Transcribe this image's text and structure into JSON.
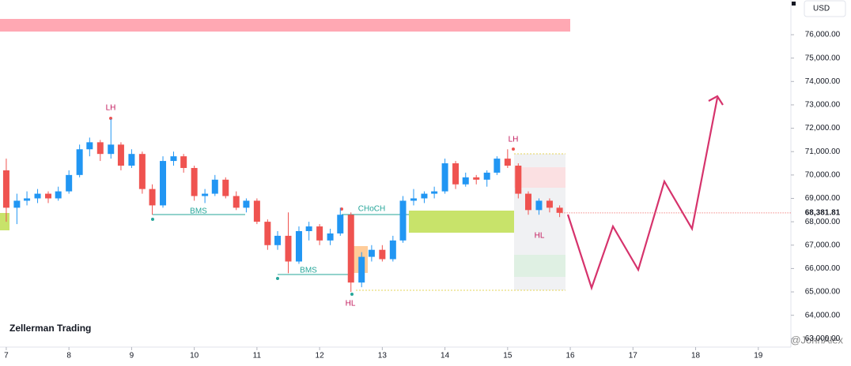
{
  "chart_data": {
    "type": "candlestick",
    "currency": "USD",
    "x": [
      7.0,
      7.17,
      7.33,
      7.5,
      7.67,
      7.83,
      8.0,
      8.17,
      8.33,
      8.5,
      8.67,
      8.83,
      9.0,
      9.17,
      9.33,
      9.5,
      9.67,
      9.83,
      10.0,
      10.17,
      10.33,
      10.5,
      10.67,
      10.83,
      11.0,
      11.17,
      11.33,
      11.5,
      11.67,
      11.83,
      12.0,
      12.17,
      12.33,
      12.5,
      12.67,
      12.83,
      13.0,
      13.17,
      13.33,
      13.5,
      13.67,
      13.83,
      14.0,
      14.17,
      14.33,
      14.5,
      14.67,
      14.83,
      15.0,
      15.17,
      15.33,
      15.5,
      15.67,
      15.83
    ],
    "open": [
      70200,
      68600,
      68900,
      69000,
      69200,
      69000,
      69300,
      70000,
      71100,
      71400,
      70900,
      71300,
      70400,
      70900,
      69400,
      68700,
      70600,
      70800,
      70300,
      69100,
      69200,
      69800,
      69100,
      68600,
      68900,
      68000,
      67000,
      67400,
      66300,
      67600,
      67800,
      67200,
      67500,
      68300,
      65400,
      66500,
      66800,
      66400,
      67200,
      68900,
      69000,
      69200,
      69300,
      70500,
      69600,
      69900,
      69800,
      70100,
      70700,
      70400,
      69200,
      68500,
      68900,
      68600
    ],
    "high": [
      70700,
      69200,
      69300,
      69400,
      69300,
      69500,
      70200,
      71300,
      71600,
      71500,
      72400,
      71400,
      71100,
      71000,
      69600,
      70800,
      71000,
      70900,
      70400,
      69400,
      70000,
      69900,
      69300,
      69000,
      69000,
      68100,
      67600,
      68400,
      67800,
      68000,
      67900,
      67700,
      68600,
      68400,
      66700,
      67000,
      67000,
      67400,
      69100,
      69400,
      69300,
      69500,
      70700,
      70600,
      70100,
      70000,
      70200,
      70800,
      71100,
      70500,
      69300,
      69000,
      69000,
      68700
    ],
    "low": [
      68000,
      67900,
      68700,
      68800,
      68800,
      68900,
      69200,
      69900,
      70800,
      70600,
      70700,
      70200,
      70300,
      69200,
      68300,
      68600,
      70400,
      70100,
      68900,
      68800,
      69100,
      69000,
      68500,
      68400,
      67900,
      66800,
      66800,
      65800,
      66200,
      67200,
      67000,
      67000,
      67400,
      65000,
      65200,
      66300,
      66300,
      66300,
      67100,
      68700,
      68800,
      69000,
      69200,
      69400,
      69500,
      69600,
      69500,
      70000,
      70300,
      69000,
      68300,
      68300,
      68400,
      68200
    ],
    "close": [
      68600,
      68900,
      69000,
      69200,
      69000,
      69300,
      70000,
      71100,
      71400,
      70900,
      71300,
      70400,
      70900,
      69400,
      68700,
      70600,
      70800,
      70300,
      69100,
      69200,
      69800,
      69100,
      68600,
      68900,
      68000,
      67000,
      67400,
      66300,
      67600,
      67800,
      67200,
      67500,
      68300,
      65400,
      66500,
      66800,
      66400,
      67200,
      68900,
      69000,
      69200,
      69300,
      70500,
      69600,
      69900,
      69800,
      70100,
      70700,
      70400,
      69200,
      68500,
      68900,
      68600,
      68381.81
    ],
    "up_color": "#2196f3",
    "down_color": "#ef5350",
    "last_price": {
      "value": 68381.81,
      "label": "68,381.81"
    },
    "xlim": [
      6.9,
      19.52
    ],
    "ylim": [
      62640,
      77485
    ],
    "xticks": [
      7,
      8,
      9,
      10,
      11,
      12,
      13,
      14,
      15,
      16,
      17,
      18,
      19
    ],
    "yticks": [
      {
        "value": 63000,
        "label": "63,000.00"
      },
      {
        "value": 64000,
        "label": "64,000.00"
      },
      {
        "value": 65000,
        "label": "65,000.00"
      },
      {
        "value": 66000,
        "label": "66,000.00"
      },
      {
        "value": 67000,
        "label": "67,000.00"
      },
      {
        "value": 68000,
        "label": "68,000.00"
      },
      {
        "value": 69000,
        "label": "69,000.00"
      },
      {
        "value": 70000,
        "label": "70,000.00"
      },
      {
        "value": 71000,
        "label": "71,000.00"
      },
      {
        "value": 72000,
        "label": "72,000.00"
      },
      {
        "value": 73000,
        "label": "73,000.00"
      },
      {
        "value": 74000,
        "label": "74,000.00"
      },
      {
        "value": 75000,
        "label": "75,000.00"
      },
      {
        "value": 76000,
        "label": "76,000.00"
      }
    ],
    "annotations": [
      "LH",
      "LH",
      "HL",
      "HL",
      "BMS",
      "BMS",
      "CHoCH"
    ],
    "watermark": "Zellerman Trading",
    "credit": "@JohnAlex"
  }
}
